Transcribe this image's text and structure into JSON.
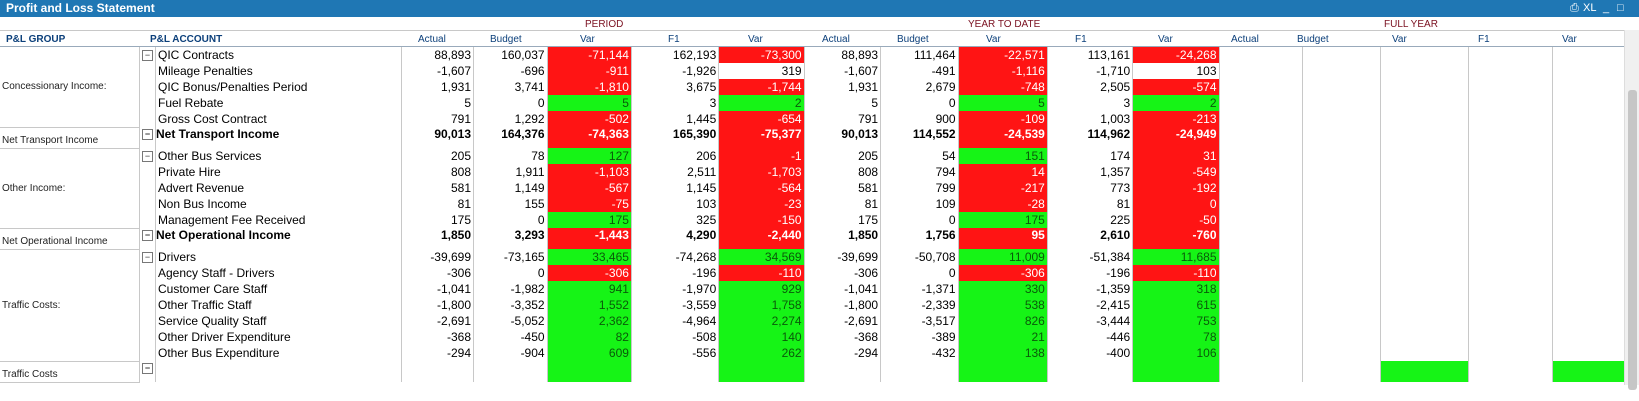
{
  "window": {
    "title": "Profit and Loss Statement",
    "controls": [
      "XL",
      "_",
      "□"
    ]
  },
  "sections": {
    "period": "PERIOD",
    "ytd": "YEAR TO DATE",
    "full": "FULL YEAR"
  },
  "columns": {
    "group": "P&L GROUP",
    "account": "P&L ACCOUNT",
    "actual": "Actual",
    "budget": "Budget",
    "var": "Var",
    "f1": "F1"
  },
  "groups": [
    {
      "name": "Concessionary Income:",
      "rows": [
        {
          "account": "QIC Contracts",
          "p": [
            "88,893",
            "160,037",
            "-71,144",
            "162,193",
            "-73,300"
          ],
          "pv": [
            "red",
            "red"
          ],
          "y": [
            "88,893",
            "111,464",
            "-22,571",
            "113,161",
            "-24,268"
          ],
          "yv": [
            "red",
            "red"
          ]
        },
        {
          "account": "Mileage Penalties",
          "p": [
            "-1,607",
            "-696",
            "-911",
            "-1,926",
            "319"
          ],
          "pv": [
            "red",
            ""
          ],
          "y": [
            "-1,607",
            "-491",
            "-1,116",
            "-1,710",
            "103"
          ],
          "yv": [
            "red",
            ""
          ]
        },
        {
          "account": "QIC Bonus/Penalties Period",
          "p": [
            "1,931",
            "3,741",
            "-1,810",
            "3,675",
            "-1,744"
          ],
          "pv": [
            "red",
            "red"
          ],
          "y": [
            "1,931",
            "2,679",
            "-748",
            "2,505",
            "-574"
          ],
          "yv": [
            "red",
            "red"
          ]
        },
        {
          "account": "Fuel Rebate",
          "p": [
            "5",
            "0",
            "5",
            "3",
            "2"
          ],
          "pv": [
            "green",
            "green"
          ],
          "y": [
            "5",
            "0",
            "5",
            "3",
            "2"
          ],
          "yv": [
            "green",
            "green"
          ]
        },
        {
          "account": "Gross Cost Contract",
          "p": [
            "791",
            "1,292",
            "-502",
            "1,445",
            "-654"
          ],
          "pv": [
            "red",
            "red"
          ],
          "y": [
            "791",
            "900",
            "-109",
            "1,003",
            "-213"
          ],
          "yv": [
            "red",
            "red"
          ]
        }
      ],
      "total": {
        "group": "Net Transport Income",
        "account": "Net Transport Income",
        "p": [
          "90,013",
          "164,376",
          "-74,363",
          "165,390",
          "-75,377"
        ],
        "pv": [
          "red",
          "red"
        ],
        "y": [
          "90,013",
          "114,552",
          "-24,539",
          "114,962",
          "-24,949"
        ],
        "yv": [
          "red",
          "red"
        ]
      }
    },
    {
      "name": "Other Income:",
      "rows": [
        {
          "account": "Other Bus Services",
          "p": [
            "205",
            "78",
            "127",
            "206",
            "-1"
          ],
          "pv": [
            "green",
            "red"
          ],
          "y": [
            "205",
            "54",
            "151",
            "174",
            "31"
          ],
          "yv": [
            "green",
            "red"
          ]
        },
        {
          "account": "Private Hire",
          "p": [
            "808",
            "1,911",
            "-1,103",
            "2,511",
            "-1,703"
          ],
          "pv": [
            "red",
            "red"
          ],
          "y": [
            "808",
            "794",
            "14",
            "1,357",
            "-549"
          ],
          "yv": [
            "red",
            "red"
          ]
        },
        {
          "account": "Advert Revenue",
          "p": [
            "581",
            "1,149",
            "-567",
            "1,145",
            "-564"
          ],
          "pv": [
            "red",
            "red"
          ],
          "y": [
            "581",
            "799",
            "-217",
            "773",
            "-192"
          ],
          "yv": [
            "red",
            "red"
          ]
        },
        {
          "account": "Non Bus Income",
          "p": [
            "81",
            "155",
            "-75",
            "103",
            "-23"
          ],
          "pv": [
            "red",
            "red"
          ],
          "y": [
            "81",
            "109",
            "-28",
            "81",
            "0"
          ],
          "yv": [
            "red",
            "red"
          ]
        },
        {
          "account": "Management Fee Received",
          "p": [
            "175",
            "0",
            "175",
            "325",
            "-150"
          ],
          "pv": [
            "green",
            "red"
          ],
          "y": [
            "175",
            "0",
            "175",
            "225",
            "-50"
          ],
          "yv": [
            "green",
            "red"
          ]
        }
      ],
      "total": {
        "group": "Net Operational Income",
        "account": "Net Operational Income",
        "p": [
          "1,850",
          "3,293",
          "-1,443",
          "4,290",
          "-2,440"
        ],
        "pv": [
          "red",
          "red"
        ],
        "y": [
          "1,850",
          "1,756",
          "95",
          "2,610",
          "-760"
        ],
        "yv": [
          "red",
          "red"
        ]
      }
    },
    {
      "name": "Traffic Costs:",
      "rows": [
        {
          "account": "Drivers",
          "p": [
            "-39,699",
            "-73,165",
            "33,465",
            "-74,268",
            "34,569"
          ],
          "pv": [
            "green",
            "green"
          ],
          "y": [
            "-39,699",
            "-50,708",
            "11,009",
            "-51,384",
            "11,685"
          ],
          "yv": [
            "green",
            "green"
          ]
        },
        {
          "account": "Agency Staff - Drivers",
          "p": [
            "-306",
            "0",
            "-306",
            "-196",
            "-110"
          ],
          "pv": [
            "red",
            "red"
          ],
          "y": [
            "-306",
            "0",
            "-306",
            "-196",
            "-110"
          ],
          "yv": [
            "red",
            "red"
          ]
        },
        {
          "account": "Customer Care Staff",
          "p": [
            "-1,041",
            "-1,982",
            "941",
            "-1,970",
            "929"
          ],
          "pv": [
            "green",
            "green"
          ],
          "y": [
            "-1,041",
            "-1,371",
            "330",
            "-1,359",
            "318"
          ],
          "yv": [
            "green",
            "green"
          ]
        },
        {
          "account": "Other Traffic Staff",
          "p": [
            "-1,800",
            "-3,352",
            "1,552",
            "-3,559",
            "1,758"
          ],
          "pv": [
            "green",
            "green"
          ],
          "y": [
            "-1,800",
            "-2,339",
            "538",
            "-2,415",
            "615"
          ],
          "yv": [
            "green",
            "green"
          ]
        },
        {
          "account": "Service Quality Staff",
          "p": [
            "-2,691",
            "-5,052",
            "2,362",
            "-4,964",
            "2,274"
          ],
          "pv": [
            "green",
            "green"
          ],
          "y": [
            "-2,691",
            "-3,517",
            "826",
            "-3,444",
            "753"
          ],
          "yv": [
            "green",
            "green"
          ]
        },
        {
          "account": "Other Driver Expenditure",
          "p": [
            "-368",
            "-450",
            "82",
            "-508",
            "140"
          ],
          "pv": [
            "green",
            "green"
          ],
          "y": [
            "-368",
            "-389",
            "21",
            "-446",
            "78"
          ],
          "yv": [
            "green",
            "green"
          ]
        },
        {
          "account": "Other Bus Expenditure",
          "p": [
            "-294",
            "-904",
            "609",
            "-556",
            "262"
          ],
          "pv": [
            "green",
            "green"
          ],
          "y": [
            "-294",
            "-432",
            "138",
            "-400",
            "106"
          ],
          "yv": [
            "green",
            "green"
          ]
        }
      ],
      "total": {
        "group": "Traffic Costs",
        "account": "",
        "p": [
          "",
          "",
          "",
          "",
          ""
        ],
        "pv": [
          "green",
          "green"
        ],
        "y": [
          "",
          "",
          "",
          "",
          ""
        ],
        "yv": [
          "green",
          "green"
        ]
      }
    }
  ]
}
